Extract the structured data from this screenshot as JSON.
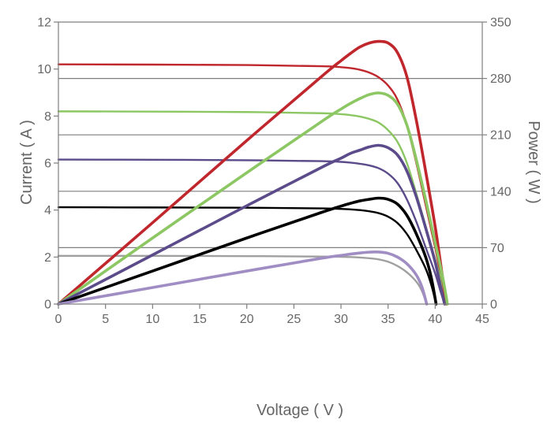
{
  "chart_data": {
    "type": "line",
    "xlabel": "Voltage ( V )",
    "ylabel": "Current ( A )",
    "y2label": "Power ( W )",
    "xlim": [
      0,
      45
    ],
    "ylim": [
      0,
      12
    ],
    "y2lim": [
      0,
      350
    ],
    "x_ticks": [
      0,
      5,
      10,
      15,
      20,
      25,
      30,
      35,
      40,
      45
    ],
    "y_ticks": [
      0,
      2,
      4,
      6,
      8,
      10,
      12
    ],
    "y2_ticks": [
      0,
      70,
      140,
      210,
      280,
      350
    ],
    "grid": "horizontal at right-axis ticks",
    "legend": "none",
    "colors": {
      "red": "#c0272d",
      "green": "#8cc763",
      "purple": "#5c4b8a",
      "black": "#000000",
      "lavender": "#a08dc4",
      "gray": "#a0a0a0"
    },
    "series": [
      {
        "kind": "current",
        "color": "#c0272d",
        "points": [
          [
            0,
            10.2
          ],
          [
            10,
            10.19
          ],
          [
            20,
            10.17
          ],
          [
            28,
            10.12
          ],
          [
            30,
            10.08
          ],
          [
            31,
            10.04
          ],
          [
            32,
            9.97
          ],
          [
            33,
            9.85
          ],
          [
            34,
            9.65
          ],
          [
            35,
            9.3
          ],
          [
            36,
            8.7
          ],
          [
            37,
            7.6
          ],
          [
            38,
            6.0
          ],
          [
            39,
            4.2
          ],
          [
            40,
            2.4
          ],
          [
            40.7,
            1.0
          ],
          [
            41.2,
            0
          ]
        ]
      },
      {
        "kind": "power",
        "color": "#c0272d",
        "points": [
          [
            0,
            0
          ],
          [
            10,
            101
          ],
          [
            20,
            203
          ],
          [
            28,
            283
          ],
          [
            30,
            302
          ],
          [
            31,
            311
          ],
          [
            32,
            319
          ],
          [
            33,
            324
          ],
          [
            34,
            326
          ],
          [
            35,
            324
          ],
          [
            36,
            312
          ],
          [
            37,
            282
          ],
          [
            38,
            228
          ],
          [
            39,
            164
          ],
          [
            40,
            96
          ],
          [
            40.7,
            40
          ],
          [
            41.2,
            0
          ]
        ]
      },
      {
        "kind": "current",
        "color": "#8cc763",
        "points": [
          [
            0,
            8.2
          ],
          [
            10,
            8.19
          ],
          [
            20,
            8.17
          ],
          [
            28,
            8.12
          ],
          [
            30,
            8.08
          ],
          [
            31,
            8.04
          ],
          [
            32,
            7.98
          ],
          [
            33,
            7.88
          ],
          [
            34,
            7.72
          ],
          [
            35,
            7.4
          ],
          [
            36,
            6.9
          ],
          [
            37,
            6.0
          ],
          [
            38,
            4.7
          ],
          [
            39,
            3.3
          ],
          [
            40,
            1.9
          ],
          [
            40.8,
            0.8
          ],
          [
            41.3,
            0
          ]
        ]
      },
      {
        "kind": "power",
        "color": "#8cc763",
        "points": [
          [
            0,
            0
          ],
          [
            10,
            82
          ],
          [
            20,
            163
          ],
          [
            28,
            227
          ],
          [
            30,
            242
          ],
          [
            31,
            249
          ],
          [
            32,
            255
          ],
          [
            33,
            260
          ],
          [
            34,
            262
          ],
          [
            35,
            259
          ],
          [
            36,
            248
          ],
          [
            37,
            222
          ],
          [
            38,
            179
          ],
          [
            39,
            129
          ],
          [
            40,
            76
          ],
          [
            40.8,
            33
          ],
          [
            41.3,
            0
          ]
        ]
      },
      {
        "kind": "current",
        "color": "#5c4b8a",
        "points": [
          [
            0,
            6.15
          ],
          [
            10,
            6.14
          ],
          [
            20,
            6.12
          ],
          [
            28,
            6.08
          ],
          [
            30,
            6.05
          ],
          [
            31,
            6.02
          ],
          [
            32,
            5.97
          ],
          [
            33,
            5.9
          ],
          [
            34,
            5.78
          ],
          [
            35,
            5.55
          ],
          [
            36,
            5.15
          ],
          [
            37,
            4.45
          ],
          [
            38,
            3.5
          ],
          [
            39,
            2.4
          ],
          [
            40,
            1.3
          ],
          [
            40.6,
            0.5
          ],
          [
            41.0,
            0
          ]
        ]
      },
      {
        "kind": "power",
        "color": "#5c4b8a",
        "points": [
          [
            0,
            0
          ],
          [
            10,
            61
          ],
          [
            20,
            122
          ],
          [
            28,
            170
          ],
          [
            30,
            181
          ],
          [
            31,
            187
          ],
          [
            32,
            191
          ],
          [
            33,
            195
          ],
          [
            34,
            197
          ],
          [
            35,
            194
          ],
          [
            36,
            185
          ],
          [
            37,
            165
          ],
          [
            38,
            133
          ],
          [
            39,
            94
          ],
          [
            40,
            52
          ],
          [
            40.6,
            20
          ],
          [
            41.0,
            0
          ]
        ]
      },
      {
        "kind": "current",
        "color": "#000000",
        "points": [
          [
            0,
            4.12
          ],
          [
            10,
            4.11
          ],
          [
            20,
            4.1
          ],
          [
            28,
            4.07
          ],
          [
            30,
            4.05
          ],
          [
            31,
            4.03
          ],
          [
            32,
            4.0
          ],
          [
            33,
            3.95
          ],
          [
            34,
            3.87
          ],
          [
            35,
            3.72
          ],
          [
            36,
            3.45
          ],
          [
            37,
            2.98
          ],
          [
            38,
            2.3
          ],
          [
            39,
            1.5
          ],
          [
            39.6,
            0.8
          ],
          [
            40.1,
            0
          ]
        ]
      },
      {
        "kind": "power",
        "color": "#000000",
        "points": [
          [
            0,
            0
          ],
          [
            10,
            41
          ],
          [
            20,
            82
          ],
          [
            28,
            114
          ],
          [
            30,
            121.5
          ],
          [
            31,
            125
          ],
          [
            32,
            128
          ],
          [
            33,
            130
          ],
          [
            34,
            131.5
          ],
          [
            35,
            130
          ],
          [
            36,
            124
          ],
          [
            37,
            110
          ],
          [
            38,
            87
          ],
          [
            39,
            58
          ],
          [
            39.6,
            32
          ],
          [
            40.1,
            0
          ]
        ]
      },
      {
        "kind": "current",
        "color": "#a0a0a0",
        "points": [
          [
            0,
            2.05
          ],
          [
            10,
            2.05
          ],
          [
            20,
            2.04
          ],
          [
            28,
            2.02
          ],
          [
            30,
            2.01
          ],
          [
            31,
            2.0
          ],
          [
            32,
            1.98
          ],
          [
            33,
            1.95
          ],
          [
            34,
            1.9
          ],
          [
            35,
            1.8
          ],
          [
            36,
            1.62
          ],
          [
            37,
            1.35
          ],
          [
            38,
            0.95
          ],
          [
            38.6,
            0.55
          ],
          [
            39.1,
            0
          ]
        ]
      },
      {
        "kind": "power",
        "color": "#a08dc4",
        "points": [
          [
            0,
            0
          ],
          [
            10,
            20.5
          ],
          [
            20,
            41
          ],
          [
            28,
            57
          ],
          [
            30,
            60.3
          ],
          [
            31,
            62
          ],
          [
            32,
            63.4
          ],
          [
            33,
            64.4
          ],
          [
            34,
            64.6
          ],
          [
            35,
            63
          ],
          [
            36,
            58.3
          ],
          [
            37,
            50
          ],
          [
            38,
            36
          ],
          [
            38.6,
            21
          ],
          [
            39.1,
            0
          ]
        ]
      }
    ]
  }
}
